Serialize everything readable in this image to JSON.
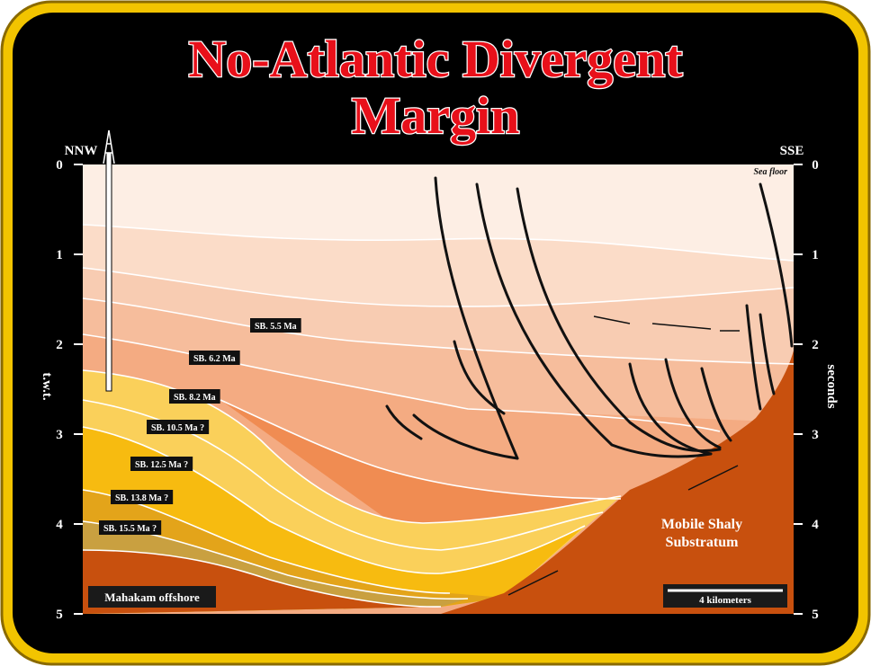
{
  "title": [
    "No-Atlantic Divergent",
    "Margin"
  ],
  "left_label": "NNW",
  "right_label": "SSE",
  "left_axis_title": "t.w.t.",
  "right_axis_title": "seconds",
  "axis_ticks": [
    "0",
    "1",
    "2",
    "3",
    "4",
    "5"
  ],
  "sea_floor": "Sea floor",
  "sequence_boundaries": [
    "SB. 5.5 Ma",
    "SB. 6.2 Ma",
    "SB. 8.2 Ma",
    "SB. 10.5 Ma ?",
    "SB. 12.5 Ma ?",
    "SB. 13.8 Ma ?",
    "SB. 15.5 Ma ?"
  ],
  "substratum": [
    "Mobile Shaly",
    "Substratum"
  ],
  "location": "Mahakam offshore",
  "scale_bar": "4 kilometers"
}
